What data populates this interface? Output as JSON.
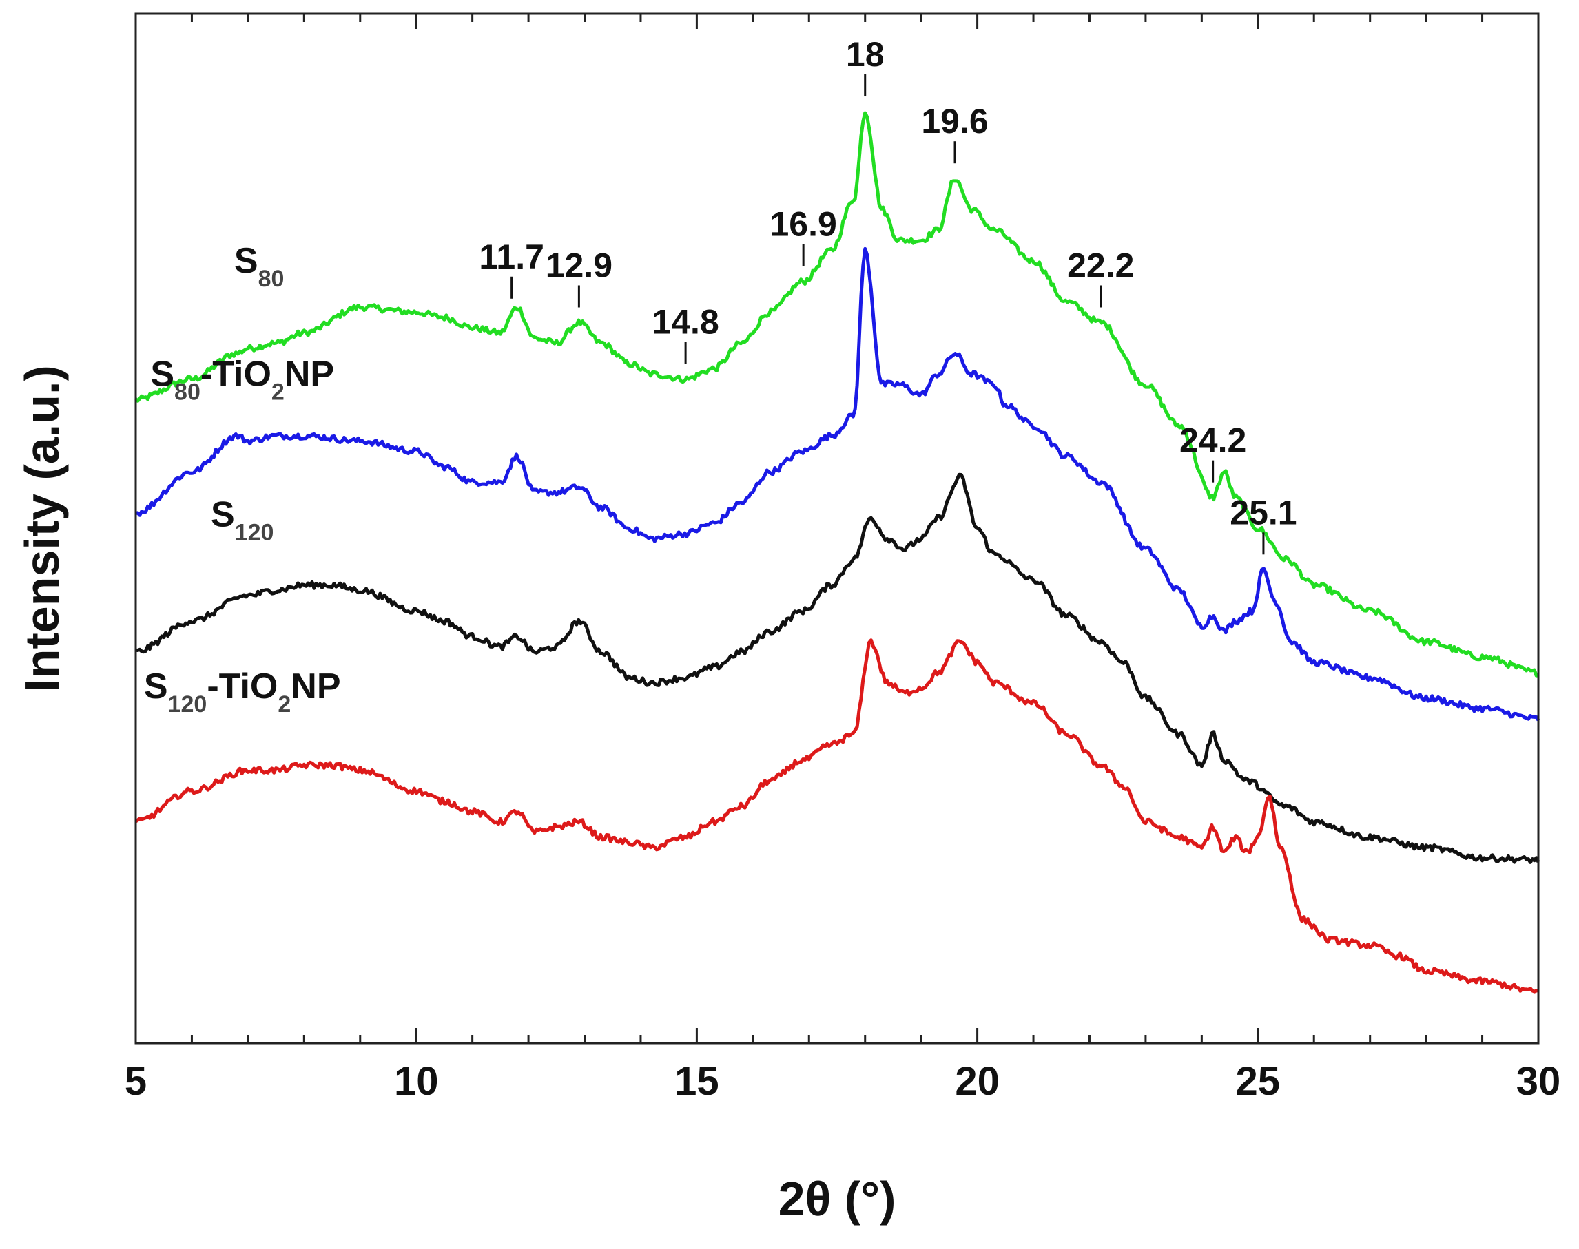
{
  "chart_data": {
    "type": "line",
    "title": "",
    "xlabel": "2θ (°)",
    "ylabel": "Intensity (a.u.)",
    "xlim": [
      5,
      30
    ],
    "ylim": [
      0,
      1
    ],
    "xticks": [
      5,
      10,
      15,
      20,
      25,
      30
    ],
    "tick_labels": [
      "5",
      "10",
      "15",
      "20",
      "25",
      "30"
    ],
    "y_ticks_labeled": false,
    "grid": false,
    "series": [
      {
        "name": "S80",
        "label_main": "S",
        "label_sub": "80",
        "label_tail": "",
        "label_tail_sub": "",
        "label_tail2": "",
        "color": "#22dd22",
        "x": [
          5,
          6,
          6.8,
          7,
          7.5,
          8,
          9,
          10,
          10.5,
          11,
          11.5,
          11.8,
          12.1,
          12.5,
          12.9,
          13.3,
          13.8,
          14.2,
          14.8,
          15.3,
          15.8,
          16.3,
          16.9,
          17.4,
          17.8,
          18.0,
          18.3,
          18.6,
          19.0,
          19.3,
          19.6,
          19.9,
          20.3,
          21.0,
          21.6,
          22.2,
          23.0,
          23.6,
          24.2,
          24.4,
          24.6,
          25.0,
          25.5,
          26,
          27,
          28,
          29,
          30
        ],
        "y": [
          0.625,
          0.645,
          0.67,
          0.675,
          0.68,
          0.69,
          0.715,
          0.71,
          0.705,
          0.695,
          0.69,
          0.715,
          0.685,
          0.68,
          0.7,
          0.68,
          0.66,
          0.65,
          0.645,
          0.655,
          0.68,
          0.71,
          0.74,
          0.77,
          0.82,
          0.905,
          0.81,
          0.78,
          0.78,
          0.79,
          0.84,
          0.81,
          0.79,
          0.76,
          0.72,
          0.7,
          0.64,
          0.6,
          0.53,
          0.555,
          0.53,
          0.5,
          0.47,
          0.445,
          0.42,
          0.39,
          0.375,
          0.36
        ]
      },
      {
        "name": "S80-TiO2NP",
        "label_main": "S",
        "label_sub": "80",
        "label_tail": "-TiO",
        "label_tail_sub": "2",
        "label_tail2": "NP",
        "color": "#1a1ae6",
        "x": [
          5,
          6,
          6.8,
          7,
          7.5,
          8,
          9,
          10,
          10.5,
          11,
          11.5,
          11.8,
          12.1,
          12.5,
          12.9,
          13.3,
          13.8,
          14.2,
          14.8,
          15.3,
          15.8,
          16.3,
          16.9,
          17.4,
          17.8,
          18.0,
          18.3,
          18.6,
          19.0,
          19.3,
          19.6,
          19.9,
          20.3,
          20.5,
          21.0,
          21.6,
          22.2,
          23.0,
          23.6,
          24.0,
          24.2,
          24.4,
          24.6,
          24.9,
          25.1,
          25.3,
          25.6,
          26,
          27,
          28,
          29,
          30
        ],
        "y": [
          0.515,
          0.555,
          0.59,
          0.585,
          0.59,
          0.59,
          0.585,
          0.575,
          0.56,
          0.545,
          0.545,
          0.57,
          0.535,
          0.535,
          0.54,
          0.52,
          0.5,
          0.49,
          0.495,
          0.505,
          0.525,
          0.555,
          0.575,
          0.59,
          0.61,
          0.77,
          0.64,
          0.64,
          0.63,
          0.65,
          0.67,
          0.65,
          0.64,
          0.62,
          0.6,
          0.57,
          0.545,
          0.48,
          0.44,
          0.405,
          0.415,
          0.4,
          0.41,
          0.42,
          0.46,
          0.43,
          0.39,
          0.37,
          0.355,
          0.335,
          0.325,
          0.315
        ]
      },
      {
        "name": "S120",
        "label_main": "S",
        "label_sub": "120",
        "label_tail": "",
        "label_tail_sub": "",
        "label_tail2": "",
        "color": "#111111",
        "x": [
          5,
          6,
          7,
          7.5,
          8,
          8.5,
          9,
          10,
          10.5,
          11,
          11.5,
          11.8,
          12.1,
          12.5,
          12.9,
          13.3,
          13.8,
          14.2,
          14.8,
          15.3,
          15.8,
          16.3,
          16.9,
          17.4,
          17.8,
          18.1,
          18.4,
          18.7,
          19.0,
          19.3,
          19.7,
          20.0,
          20.3,
          21.0,
          21.6,
          22.2,
          22.6,
          23.0,
          23.6,
          24.0,
          24.2,
          24.4,
          24.8,
          25.5,
          26,
          27,
          28,
          29,
          30
        ],
        "y": [
          0.38,
          0.41,
          0.435,
          0.44,
          0.445,
          0.445,
          0.44,
          0.42,
          0.41,
          0.395,
          0.385,
          0.395,
          0.38,
          0.385,
          0.41,
          0.38,
          0.355,
          0.35,
          0.355,
          0.365,
          0.38,
          0.4,
          0.42,
          0.445,
          0.47,
          0.51,
          0.49,
          0.48,
          0.49,
          0.51,
          0.55,
          0.5,
          0.475,
          0.45,
          0.415,
          0.39,
          0.37,
          0.335,
          0.3,
          0.27,
          0.3,
          0.275,
          0.255,
          0.23,
          0.215,
          0.2,
          0.19,
          0.18,
          0.178
        ]
      },
      {
        "name": "S120-TiO2NP",
        "label_main": "S",
        "label_sub": "120",
        "label_tail": "-TiO",
        "label_tail_sub": "2",
        "label_tail2": "NP",
        "color": "#dd1a1a",
        "x": [
          5,
          6,
          7,
          7.5,
          8,
          8.5,
          9,
          10,
          10.5,
          11,
          11.5,
          11.8,
          12.1,
          12.5,
          12.9,
          13.3,
          13.8,
          14.2,
          14.8,
          15.3,
          15.8,
          16.3,
          16.9,
          17.4,
          17.8,
          18.1,
          18.4,
          18.7,
          19.0,
          19.3,
          19.7,
          20.0,
          20.3,
          21.0,
          21.6,
          22.2,
          22.6,
          23.0,
          23.6,
          24.0,
          24.2,
          24.4,
          24.6,
          24.8,
          25.0,
          25.2,
          25.4,
          25.8,
          26.3,
          27.0,
          27.5,
          28,
          29,
          30
        ],
        "y": [
          0.215,
          0.245,
          0.265,
          0.265,
          0.27,
          0.27,
          0.265,
          0.245,
          0.235,
          0.225,
          0.215,
          0.225,
          0.205,
          0.21,
          0.215,
          0.2,
          0.195,
          0.19,
          0.2,
          0.215,
          0.23,
          0.255,
          0.275,
          0.29,
          0.3,
          0.39,
          0.35,
          0.34,
          0.345,
          0.36,
          0.39,
          0.37,
          0.35,
          0.33,
          0.3,
          0.27,
          0.25,
          0.215,
          0.2,
          0.19,
          0.21,
          0.185,
          0.2,
          0.185,
          0.2,
          0.24,
          0.19,
          0.12,
          0.1,
          0.095,
          0.085,
          0.07,
          0.06,
          0.05
        ]
      }
    ],
    "peak_annotations": [
      {
        "label": "11.7",
        "x": 11.7,
        "series": "S80"
      },
      {
        "label": "12.9",
        "x": 12.9,
        "series": "S80"
      },
      {
        "label": "14.8",
        "x": 14.8,
        "series": "S80"
      },
      {
        "label": "16.9",
        "x": 16.9,
        "series": "S80"
      },
      {
        "label": "18",
        "x": 18.0,
        "series": "S80"
      },
      {
        "label": "19.6",
        "x": 19.6,
        "series": "S80"
      },
      {
        "label": "22.2",
        "x": 22.2,
        "series": "S80"
      },
      {
        "label": "24.2",
        "x": 24.2,
        "series": "S80"
      },
      {
        "label": "25.1",
        "x": 25.1,
        "series": "S80-TiO2NP"
      }
    ]
  }
}
